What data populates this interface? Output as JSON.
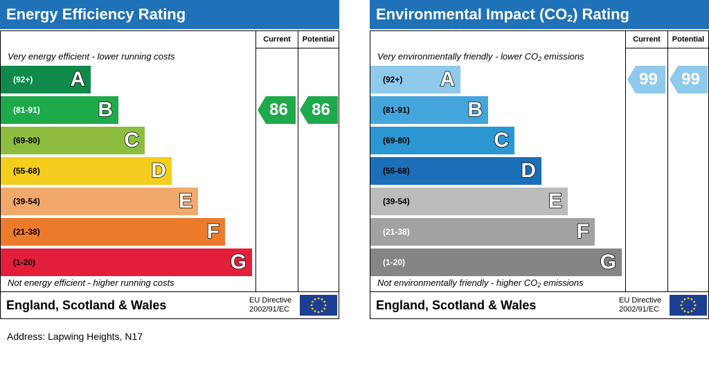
{
  "panels": [
    {
      "id": "energy",
      "title_parts": [
        "Energy Efficiency Rating"
      ],
      "col_current": "Current",
      "col_potential": "Potential",
      "top_desc_parts": [
        "Very energy efficient - lower running costs"
      ],
      "bottom_desc_parts": [
        "Not energy efficient - higher running costs"
      ],
      "footer_region": "England, Scotland & Wales",
      "eu_line1": "EU Directive",
      "eu_line2": "2002/91/EC",
      "bands": [
        {
          "range": "(92+)",
          "letter": "A",
          "color": "#0f8a4a",
          "range_color": "#ffffff"
        },
        {
          "range": "(81-91)",
          "letter": "B",
          "color": "#1ea94b",
          "range_color": "#ffffff"
        },
        {
          "range": "(69-80)",
          "letter": "C",
          "color": "#8cbd3f",
          "range_color": "#000000"
        },
        {
          "range": "(55-68)",
          "letter": "D",
          "color": "#f4cd1d",
          "range_color": "#000000"
        },
        {
          "range": "(39-54)",
          "letter": "E",
          "color": "#f2a96c",
          "range_color": "#000000"
        },
        {
          "range": "(21-38)",
          "letter": "F",
          "color": "#ec7c2b",
          "range_color": "#000000"
        },
        {
          "range": "(1-20)",
          "letter": "G",
          "color": "#e31e3b",
          "range_color": "#000000"
        }
      ],
      "current": {
        "value": "86",
        "band": "B",
        "color": "#1ea94b"
      },
      "potential": {
        "value": "86",
        "band": "B",
        "color": "#1ea94b"
      }
    },
    {
      "id": "environment",
      "title_parts": [
        "Environmental Impact (CO",
        "2",
        ") Rating"
      ],
      "col_current": "Current",
      "col_potential": "Potential",
      "top_desc_parts": [
        "Very environmentally friendly - lower CO",
        "2",
        " emissions"
      ],
      "bottom_desc_parts": [
        "Not environmentally friendly - higher CO",
        "2",
        " emissions"
      ],
      "footer_region": "England, Scotland & Wales",
      "eu_line1": "EU Directive",
      "eu_line2": "2002/91/EC",
      "bands": [
        {
          "range": "(92+)",
          "letter": "A",
          "color": "#8fc9ec",
          "range_color": "#000000"
        },
        {
          "range": "(81-91)",
          "letter": "B",
          "color": "#44a5dd",
          "range_color": "#000000"
        },
        {
          "range": "(69-80)",
          "letter": "C",
          "color": "#2a97d2",
          "range_color": "#000000"
        },
        {
          "range": "(55-68)",
          "letter": "D",
          "color": "#1b6fb6",
          "range_color": "#000000"
        },
        {
          "range": "(39-54)",
          "letter": "E",
          "color": "#bcbcbc",
          "range_color": "#000000"
        },
        {
          "range": "(21-38)",
          "letter": "F",
          "color": "#a2a2a2",
          "range_color": "#ffffff"
        },
        {
          "range": "(1-20)",
          "letter": "G",
          "color": "#858585",
          "range_color": "#ffffff"
        }
      ],
      "current": {
        "value": "99",
        "band": "A",
        "color": "#8fc9ec"
      },
      "potential": {
        "value": "99",
        "band": "A",
        "color": "#8fc9ec"
      }
    }
  ],
  "address": "Address: Lapwing Heights, N17",
  "icons": {
    "eu_flag": "eu-flag-icon"
  },
  "colors": {
    "title_bar": "#1f71b8",
    "eu_flag_bg": "#1b3f93",
    "eu_flag_star": "#ffd400"
  },
  "chart_data": [
    {
      "type": "table",
      "title": "Energy Efficiency Rating",
      "categories": [
        "A",
        "B",
        "C",
        "D",
        "E",
        "F",
        "G"
      ],
      "ranges": [
        "(92+)",
        "(81-91)",
        "(69-80)",
        "(55-68)",
        "(39-54)",
        "(21-38)",
        "(1-20)"
      ],
      "current": 86,
      "potential": 86
    },
    {
      "type": "table",
      "title": "Environmental Impact (CO2) Rating",
      "categories": [
        "A",
        "B",
        "C",
        "D",
        "E",
        "F",
        "G"
      ],
      "ranges": [
        "(92+)",
        "(81-91)",
        "(69-80)",
        "(55-68)",
        "(39-54)",
        "(21-38)",
        "(1-20)"
      ],
      "current": 99,
      "potential": 99
    }
  ]
}
